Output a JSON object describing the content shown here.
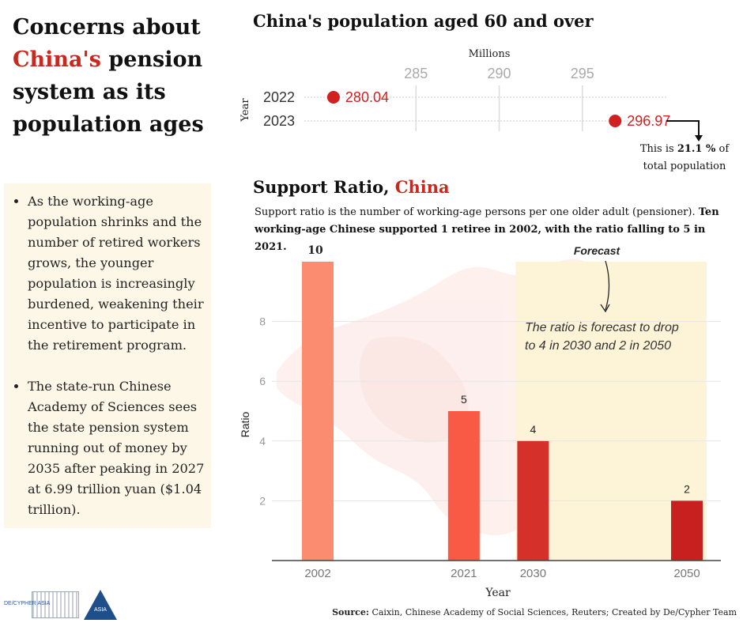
{
  "headline": {
    "line1": "Concerns about",
    "highlight": "China's",
    "rest1": " pension",
    "line3": "system as its",
    "line4": "population ages"
  },
  "notes": {
    "items": [
      "As the working-age population shrinks and the number of retired workers grows, the younger population is increasingly burdened, weakening their incentive to participate in the retirement program.",
      "The state-run Chinese Academy of Sciences sees the state pension system running out of money by 2035 after peaking in 2027 at 6.99 trillion yuan ($1.04 trillion)."
    ]
  },
  "population": {
    "title": "China's population aged 60 and over",
    "note_prefix": "This is ",
    "note_value": "21.1 %",
    "note_suffix": " of",
    "note_line2": "total population"
  },
  "support": {
    "title_prefix": "Support Ratio, ",
    "title_highlight": "China",
    "desc_plain": "Support ratio is the number of working-age persons per one older adult (pensioner). ",
    "desc_bold": "Ten working-age Chinese supported 1 retiree in 2002, with the ratio falling to 5 in 2021."
  },
  "colors": {
    "accent": "#c8281e",
    "dot": "#d0201f",
    "bar_2002": "#fb8c6f",
    "bar_2021": "#f95a45",
    "bar_2030": "#d6302a",
    "bar_2050": "#c81f1f",
    "forecast_band": "#fdf3d6"
  },
  "source": {
    "label": "Source:",
    "text": " Caixin, Chinese Academy of Social Sciences, Reuters; Created by De/Cypher Team"
  },
  "logos": {
    "left": "DE/CYPHER ASIA",
    "right": "ASIA"
  },
  "chart_data": [
    {
      "type": "scatter",
      "title": "China's population aged 60 and over",
      "xlabel": "Millions",
      "ylabel": "Year",
      "categories": [
        "2022",
        "2023"
      ],
      "values": [
        280.04,
        296.97
      ],
      "x_ticks": [
        285,
        290,
        295
      ],
      "xlim": [
        278,
        300
      ],
      "grid": true
    },
    {
      "type": "bar",
      "title": "Support Ratio, China",
      "xlabel": "Year",
      "ylabel": "Ratio",
      "categories": [
        "2002",
        "2021",
        "2030",
        "2050"
      ],
      "x_values": [
        2002,
        2021,
        2030,
        2050
      ],
      "values": [
        10,
        5,
        4,
        2
      ],
      "y_ticks": [
        2,
        4,
        6,
        8
      ],
      "ylim": [
        0,
        10
      ],
      "grid": true,
      "forecast_label": "Forecast",
      "forecast_from": 2030,
      "annotation_line1": "The ratio is forecast to drop",
      "annotation_line2": "to 4 in 2030 and 2 in 2050"
    }
  ]
}
